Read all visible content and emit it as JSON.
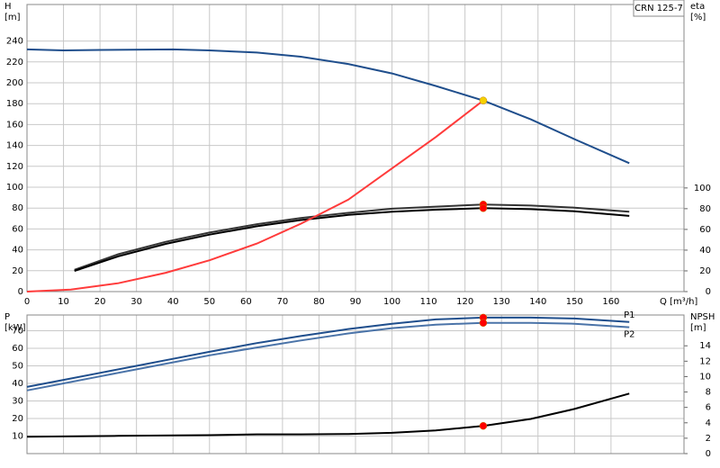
{
  "chart_data": [
    {
      "type": "line",
      "title": "CRN 125-7",
      "ylabel": [
        "H",
        "[m]"
      ],
      "y2label": [
        "eta",
        "[%]"
      ],
      "xlabel": "Q [m³/h]",
      "xlim": [
        0,
        180
      ],
      "xticks": [
        0,
        10,
        20,
        30,
        40,
        50,
        60,
        70,
        80,
        90,
        100,
        110,
        120,
        130,
        140,
        150,
        160
      ],
      "ylim": [
        0,
        275
      ],
      "yticks": [
        0,
        20,
        40,
        60,
        80,
        100,
        120,
        140,
        160,
        180,
        200,
        220,
        240
      ],
      "y2lim": [
        0,
        277
      ],
      "y2ticks": [
        0,
        20,
        40,
        60,
        80,
        100
      ],
      "grid": true,
      "series": [
        {
          "color": "#1f4e8c",
          "x": [
            0,
            10,
            20,
            40,
            50,
            63,
            75,
            88,
            100,
            112,
            125,
            138,
            150,
            165
          ],
          "values": [
            232,
            231,
            231.5,
            232,
            231,
            229,
            225,
            218,
            209,
            197,
            183,
            165,
            146,
            123
          ]
        },
        {
          "color": "#333333",
          "axis": "y2",
          "x": [
            13,
            25,
            38,
            50,
            63,
            75,
            88,
            100,
            112,
            125,
            138,
            150,
            165
          ],
          "values": [
            21,
            36,
            48,
            57,
            65,
            71,
            76,
            80,
            82,
            84,
            83,
            81,
            77
          ]
        },
        {
          "color": "#000000",
          "axis": "y2",
          "x": [
            13,
            25,
            38,
            50,
            63,
            75,
            88,
            100,
            112,
            125,
            138,
            150,
            165
          ],
          "values": [
            20,
            34,
            46,
            55,
            63,
            69,
            74,
            77,
            79,
            80.5,
            79.5,
            77.5,
            73
          ]
        },
        {
          "color": "#ff3b3b",
          "x": [
            0,
            12,
            25,
            38,
            50,
            63,
            75,
            88,
            100,
            112,
            125
          ],
          "values": [
            0,
            2,
            8,
            18,
            30,
            46,
            65,
            88,
            118,
            148,
            183
          ]
        }
      ],
      "points": [
        {
          "x": 125,
          "y": 183,
          "color": "#f5d000"
        },
        {
          "x": 125,
          "y": 84,
          "axis": "y2",
          "color": "#ff0000"
        },
        {
          "x": 125,
          "y": 80.5,
          "axis": "y2",
          "color": "#ff0000"
        }
      ]
    },
    {
      "type": "line",
      "ylabel": [
        "P",
        "[kW]"
      ],
      "y2label": [
        "NPSH",
        "[m]"
      ],
      "xlim": [
        0,
        180
      ],
      "xticks": [
        0,
        10,
        20,
        30,
        40,
        50,
        60,
        70,
        80,
        90,
        100,
        110,
        120,
        130,
        140,
        150,
        160
      ],
      "ylim": [
        0,
        79
      ],
      "yticks": [
        10,
        20,
        30,
        40,
        50,
        60,
        70
      ],
      "y2lim": [
        0,
        18
      ],
      "y2ticks": [
        0,
        2,
        4,
        6,
        8,
        10,
        12,
        14
      ],
      "grid": true,
      "series": [
        {
          "name": "P1",
          "color": "#1f4e8c",
          "x": [
            0,
            10,
            20,
            30,
            40,
            50,
            63,
            75,
            88,
            100,
            112,
            125,
            138,
            150,
            165
          ],
          "values": [
            38,
            42,
            46,
            50,
            54,
            58,
            63,
            67,
            71,
            74,
            76.5,
            77.5,
            77.5,
            77,
            75
          ]
        },
        {
          "name": "P2",
          "color": "#4a73a8",
          "x": [
            0,
            10,
            20,
            30,
            40,
            50,
            63,
            75,
            88,
            100,
            112,
            125,
            138,
            150,
            165
          ],
          "values": [
            36,
            40,
            44,
            48,
            52,
            56,
            60.5,
            64.5,
            68.5,
            71.5,
            73.5,
            74.5,
            74.5,
            74,
            72
          ]
        },
        {
          "color": "#000000",
          "axis": "y2",
          "x": [
            0,
            25,
            50,
            63,
            75,
            88,
            100,
            112,
            125,
            138,
            150,
            165
          ],
          "values": [
            2.2,
            2.3,
            2.4,
            2.5,
            2.5,
            2.55,
            2.7,
            3.0,
            3.6,
            4.5,
            5.8,
            7.8
          ]
        }
      ],
      "points": [
        {
          "x": 125,
          "y": 77.5,
          "color": "#ff0000"
        },
        {
          "x": 125,
          "y": 74.5,
          "color": "#ff0000"
        },
        {
          "x": 125,
          "y": 3.6,
          "axis": "y2",
          "color": "#ff0000"
        }
      ]
    }
  ]
}
